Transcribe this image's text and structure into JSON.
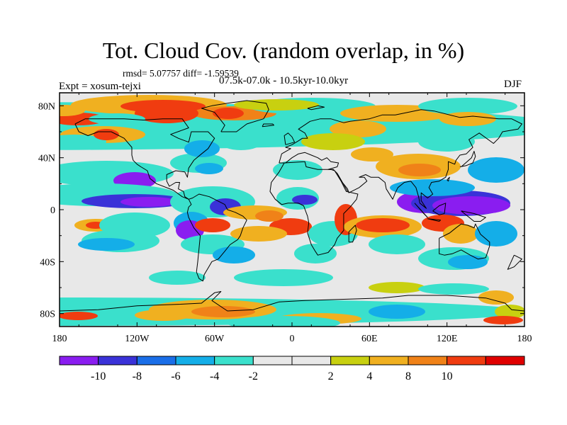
{
  "title": "Tot. Cloud Cov. (random overlap, in %)",
  "stats": "rmsd= 5.07757 diff= -1.59539",
  "experiment": "Expt = xosum-tejxi",
  "period": "07.5k-07.0k - 10.5kyr-10.0kyr",
  "season": "DJF",
  "y_tick_labels": [
    "80N",
    "40N",
    "0",
    "40S",
    "80S"
  ],
  "x_tick_labels": [
    "180",
    "120W",
    "60W",
    "0",
    "60E",
    "120E",
    "180"
  ],
  "colorbar": {
    "colors": [
      "#8a1df0",
      "#3a32d8",
      "#1a6ee8",
      "#14aee8",
      "#3ae0cc",
      "#e8e8e8",
      "#e8e8e8",
      "#c8d010",
      "#f0b020",
      "#f08218",
      "#f03c10",
      "#e00000"
    ],
    "labels": [
      "-10",
      "-8",
      "-6",
      "-4",
      "-2",
      "2",
      "4",
      "8",
      "10"
    ]
  }
}
